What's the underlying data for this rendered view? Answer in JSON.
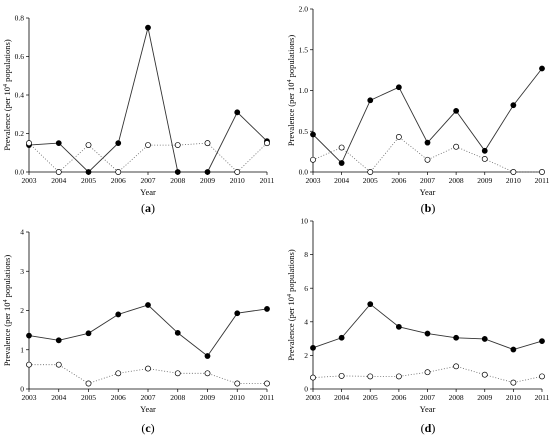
{
  "chart_data": [
    {
      "type": "line",
      "panel_label": "a",
      "xlabel": "Year",
      "ylabel": "Prevalence (per 10^4 populations)",
      "x": [
        "2003",
        "2004",
        "2005",
        "2006",
        "2007",
        "2008",
        "2009",
        "2010",
        "2011"
      ],
      "ylim": [
        0,
        0.8
      ],
      "yticks": [
        "0.0",
        "0.2",
        "0.4",
        "0.6",
        "0.8"
      ],
      "series": [
        {
          "marker": "filled",
          "line": "solid",
          "values": [
            0.14,
            0.15,
            0.0,
            0.15,
            0.75,
            0.0,
            0.0,
            0.31,
            0.16
          ]
        },
        {
          "marker": "open",
          "line": "dotted",
          "values": [
            0.15,
            0.0,
            0.14,
            0.0,
            0.14,
            0.14,
            0.15,
            0.0,
            0.15
          ]
        }
      ]
    },
    {
      "type": "line",
      "panel_label": "b",
      "xlabel": "Year",
      "ylabel": "Prevalence (per 10^4 populations)",
      "x": [
        "2003",
        "2004",
        "2005",
        "2006",
        "2007",
        "2008",
        "2009",
        "2010",
        "2011"
      ],
      "ylim": [
        0,
        2.0
      ],
      "yticks": [
        "0.0",
        "0.5",
        "1.0",
        "1.5",
        "2.0"
      ],
      "series": [
        {
          "marker": "filled",
          "line": "solid",
          "values": [
            0.46,
            0.11,
            0.88,
            1.04,
            0.36,
            0.75,
            0.26,
            0.82,
            1.27
          ]
        },
        {
          "marker": "open",
          "line": "dotted",
          "values": [
            0.15,
            0.3,
            0.0,
            0.43,
            0.15,
            0.31,
            0.16,
            0.0,
            0.0
          ]
        }
      ]
    },
    {
      "type": "line",
      "panel_label": "c",
      "xlabel": "Year",
      "ylabel": "Prevalence (per 10^4 populations)",
      "x": [
        "2003",
        "2004",
        "2005",
        "2006",
        "2007",
        "2008",
        "2009",
        "2010",
        "2011"
      ],
      "ylim": [
        0,
        4
      ],
      "yticks": [
        "0",
        "1",
        "2",
        "3",
        "4"
      ],
      "series": [
        {
          "marker": "filled",
          "line": "solid",
          "values": [
            1.36,
            1.24,
            1.42,
            1.9,
            2.14,
            1.43,
            0.84,
            1.93,
            2.04
          ]
        },
        {
          "marker": "open",
          "line": "dotted",
          "values": [
            0.62,
            0.62,
            0.14,
            0.4,
            0.52,
            0.4,
            0.4,
            0.14,
            0.14
          ]
        }
      ]
    },
    {
      "type": "line",
      "panel_label": "d",
      "xlabel": "Year",
      "ylabel": "Prevalence (per 10^4 populations)",
      "x": [
        "2003",
        "2004",
        "2005",
        "2006",
        "2007",
        "2008",
        "2009",
        "2010",
        "2011"
      ],
      "ylim": [
        0,
        10
      ],
      "yticks": [
        "0",
        "2",
        "4",
        "6",
        "8",
        "10"
      ],
      "series": [
        {
          "marker": "filled",
          "line": "solid",
          "values": [
            2.45,
            3.05,
            5.05,
            3.7,
            3.3,
            3.05,
            2.98,
            2.35,
            2.85
          ]
        },
        {
          "marker": "open",
          "line": "dotted",
          "values": [
            0.68,
            0.78,
            0.75,
            0.75,
            1.0,
            1.35,
            0.85,
            0.38,
            0.75
          ]
        }
      ]
    }
  ]
}
